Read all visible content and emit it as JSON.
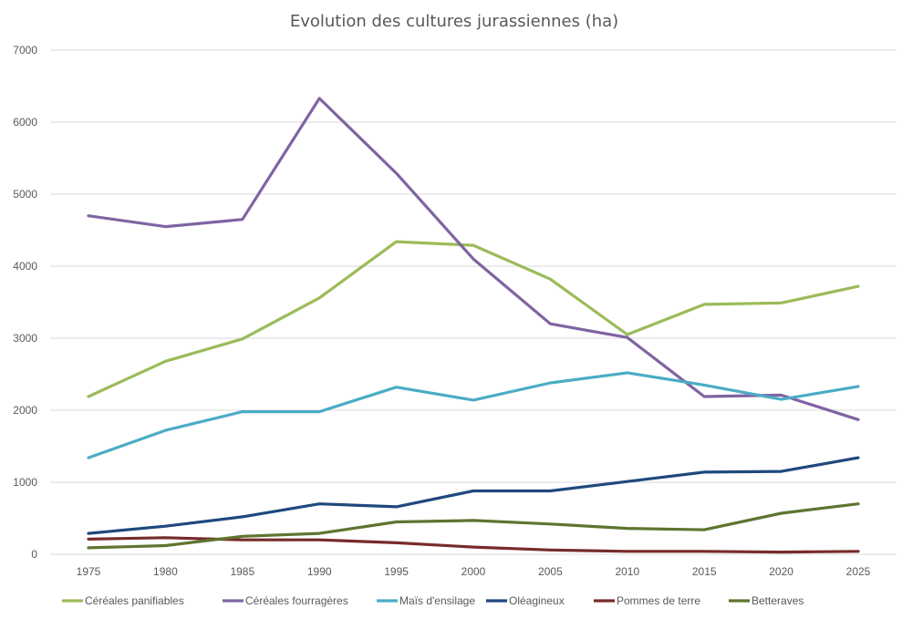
{
  "chart_data": {
    "type": "line",
    "title": "Evolution des cultures jurassiennes (ha)",
    "xlabel": "",
    "ylabel": "",
    "x": [
      "1975",
      "1980",
      "1985",
      "1990",
      "1995",
      "2000",
      "2005",
      "2010",
      "2015",
      "2020",
      "2025"
    ],
    "ylim": [
      0,
      7000
    ],
    "yticks": [
      "0",
      "1000",
      "2000",
      "3000",
      "4000",
      "5000",
      "6000",
      "7000"
    ],
    "grid": true,
    "legend_position": "bottom",
    "series": [
      {
        "name": "Céréales panifiables",
        "color": "#9bbb59",
        "values": [
          2190,
          2680,
          2990,
          3560,
          4340,
          4290,
          3820,
          3050,
          3470,
          3490,
          3720
        ]
      },
      {
        "name": "Céréales fourragères",
        "color": "#8064a2",
        "values": [
          4700,
          4550,
          4650,
          6330,
          5290,
          4100,
          3200,
          3010,
          2190,
          2210,
          1870
        ]
      },
      {
        "name": "Maïs d'ensilage",
        "color": "#4bacc6",
        "values": [
          1340,
          1720,
          1980,
          1980,
          2320,
          2140,
          2380,
          2520,
          2350,
          2150,
          2330
        ]
      },
      {
        "name": "Oléagineux",
        "color": "#1f497d",
        "values": [
          290,
          390,
          520,
          700,
          660,
          880,
          880,
          1010,
          1140,
          1150,
          1340
        ]
      },
      {
        "name": "Pommes de terre",
        "color": "#772c2a",
        "values": [
          210,
          230,
          200,
          200,
          160,
          100,
          60,
          40,
          40,
          30,
          40
        ]
      },
      {
        "name": "Betteraves",
        "color": "#5f7530",
        "values": [
          90,
          120,
          250,
          290,
          450,
          470,
          420,
          360,
          340,
          570,
          700
        ]
      }
    ]
  }
}
